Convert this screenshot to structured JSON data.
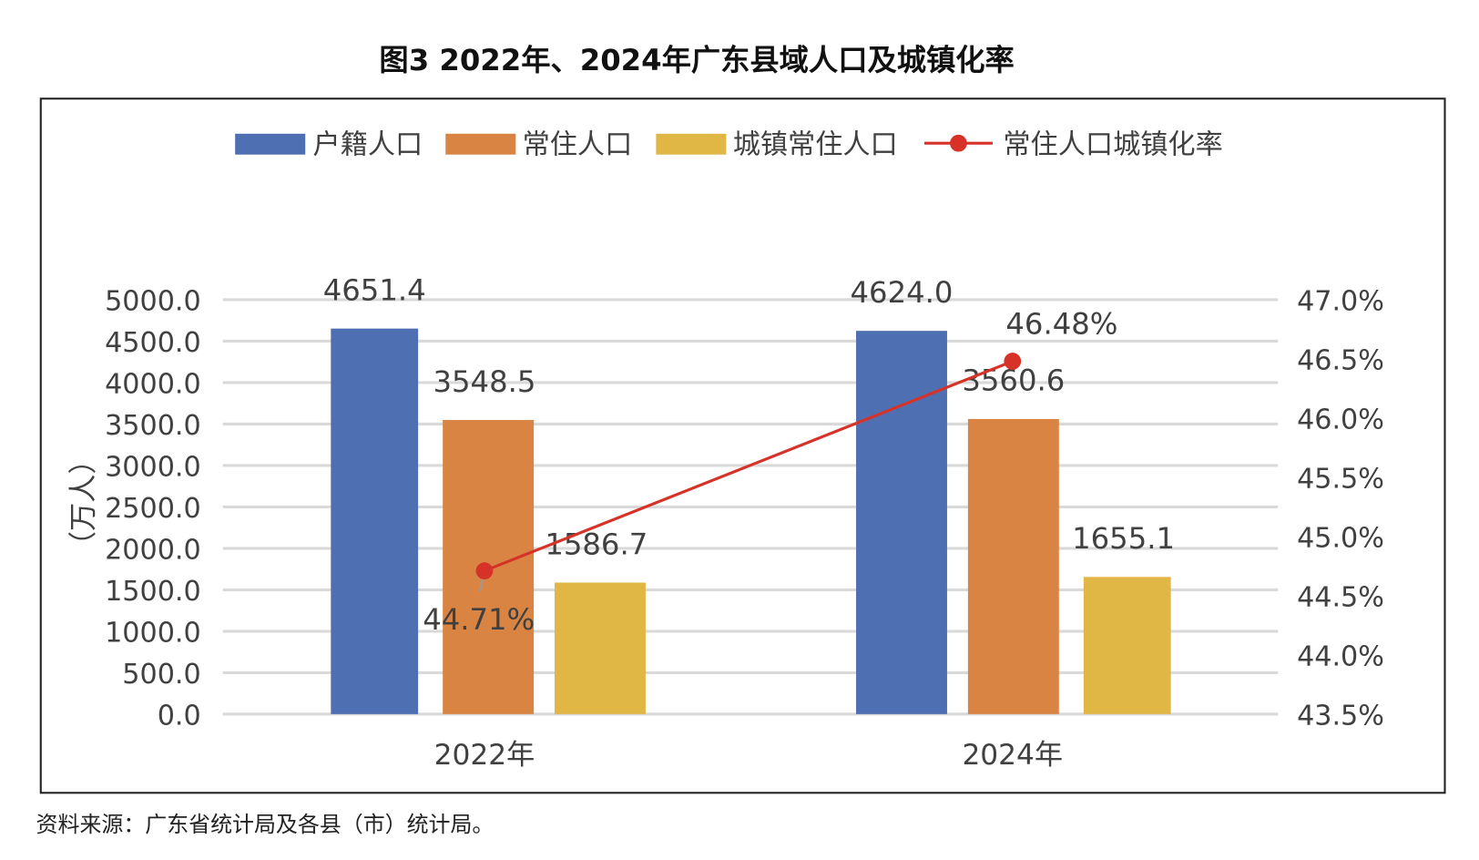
{
  "title": "图3  2022年、2024年广东县域人口及城镇化率",
  "source": "资料来源：广东省统计局及各县（市）统计局。",
  "chart_data": {
    "type": "bar",
    "title": "图3  2022年、2024年广东县域人口及城镇化率",
    "categories": [
      "2022年",
      "2024年"
    ],
    "ylabel": "（万人）",
    "ylim": [
      0,
      5000
    ],
    "yticks": [
      "0.0",
      "500.0",
      "1000.0",
      "1500.0",
      "2000.0",
      "2500.0",
      "3000.0",
      "3500.0",
      "4000.0",
      "4500.0",
      "5000.0"
    ],
    "y2lim": [
      43.5,
      47.0
    ],
    "y2ticks": [
      "43.5%",
      "44.0%",
      "44.5%",
      "45.0%",
      "45.5%",
      "46.0%",
      "46.5%",
      "47.0%"
    ],
    "grid": true,
    "legend_position": "top",
    "series": [
      {
        "name": "户籍人口",
        "type": "bar",
        "color": "#4e6fb2",
        "values": [
          4651.4,
          4624.0
        ],
        "labels": [
          "4651.4",
          "4624.0"
        ]
      },
      {
        "name": "常住人口",
        "type": "bar",
        "color": "#d98443",
        "values": [
          3548.5,
          3560.6
        ],
        "labels": [
          "3548.5",
          "3560.6"
        ]
      },
      {
        "name": "城镇常住人口",
        "type": "bar",
        "color": "#e0b645",
        "values": [
          1586.7,
          1655.1
        ],
        "labels": [
          "1586.7",
          "1655.1"
        ]
      },
      {
        "name": "常住人口城镇化率",
        "type": "line",
        "axis": "right",
        "color": "#d63228",
        "values": [
          44.71,
          46.48
        ],
        "labels": [
          "44.71%",
          "46.48%"
        ]
      }
    ]
  }
}
